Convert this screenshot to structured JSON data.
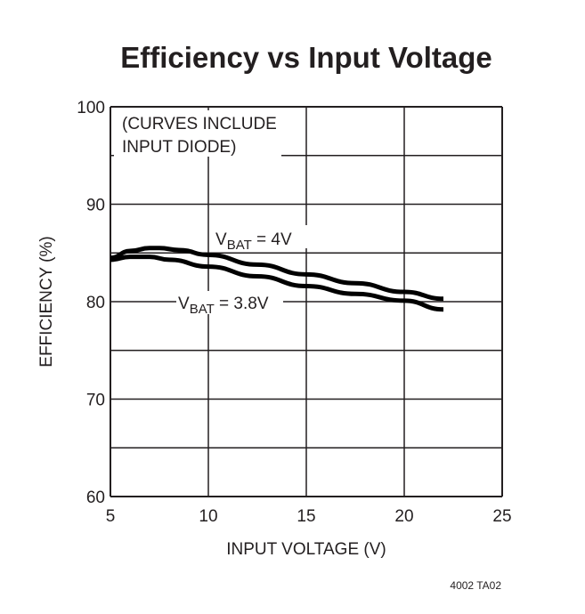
{
  "chart_data": {
    "type": "line",
    "title": "Efficiency vs Input Voltage",
    "xlabel": "INPUT VOLTAGE (V)",
    "ylabel": "EFFICIENCY (%)",
    "xlim": [
      5,
      25
    ],
    "ylim": [
      60,
      100
    ],
    "xticks": [
      5,
      10,
      15,
      20,
      25
    ],
    "yticks": [
      60,
      70,
      80,
      90,
      100
    ],
    "grid": true,
    "annotation_lines": [
      "(CURVES INCLUDE",
      "INPUT DIODE)"
    ],
    "series": [
      {
        "name": "VBAT = 4V",
        "label_main": "V",
        "label_sub": "BAT",
        "label_rest": " = 4V",
        "x": [
          5,
          6,
          7,
          7.5,
          8.5,
          10,
          12.5,
          15,
          17.5,
          20,
          22
        ],
        "y": [
          84.5,
          85.2,
          85.5,
          85.5,
          85.3,
          84.8,
          83.8,
          82.8,
          81.9,
          81.0,
          80.3
        ]
      },
      {
        "name": "VBAT = 3.8V",
        "label_main": "V",
        "label_sub": "BAT",
        "label_rest": " = 3.8V",
        "x": [
          5,
          6,
          7,
          8,
          10,
          12.5,
          15,
          17.5,
          20,
          22
        ],
        "y": [
          84.3,
          84.6,
          84.6,
          84.3,
          83.6,
          82.6,
          81.6,
          80.8,
          80.1,
          79.2
        ]
      }
    ],
    "footer_code": "4002 TA02"
  }
}
